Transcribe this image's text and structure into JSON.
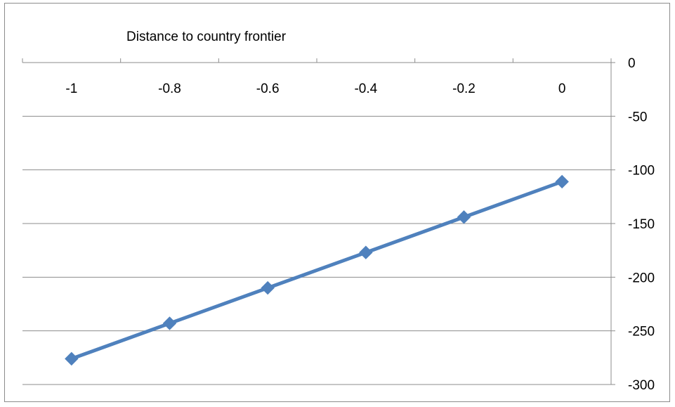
{
  "chart_data": {
    "type": "line",
    "title": "Distance to country frontier",
    "xlabel": "",
    "ylabel": "",
    "x": [
      -1,
      -0.8,
      -0.6,
      -0.4,
      -0.2,
      0
    ],
    "series": [
      {
        "values": [
          -276,
          -243,
          -210,
          -177,
          -144,
          -111
        ],
        "color": "#4f81bd"
      }
    ],
    "xlim": [
      -1.1,
      0.1
    ],
    "ylim": [
      -300,
      0
    ],
    "x_ticks": [
      "-1",
      "-0.8",
      "-0.6",
      "-0.4",
      "-0.2",
      "0"
    ],
    "y_ticks": [
      "0",
      "-50",
      "-100",
      "-150",
      "-200",
      "-250",
      "-300"
    ],
    "x_axis_position": "top",
    "y_axis_position": "right",
    "grid": "horizontal",
    "legend": "none",
    "marker": "diamond"
  }
}
